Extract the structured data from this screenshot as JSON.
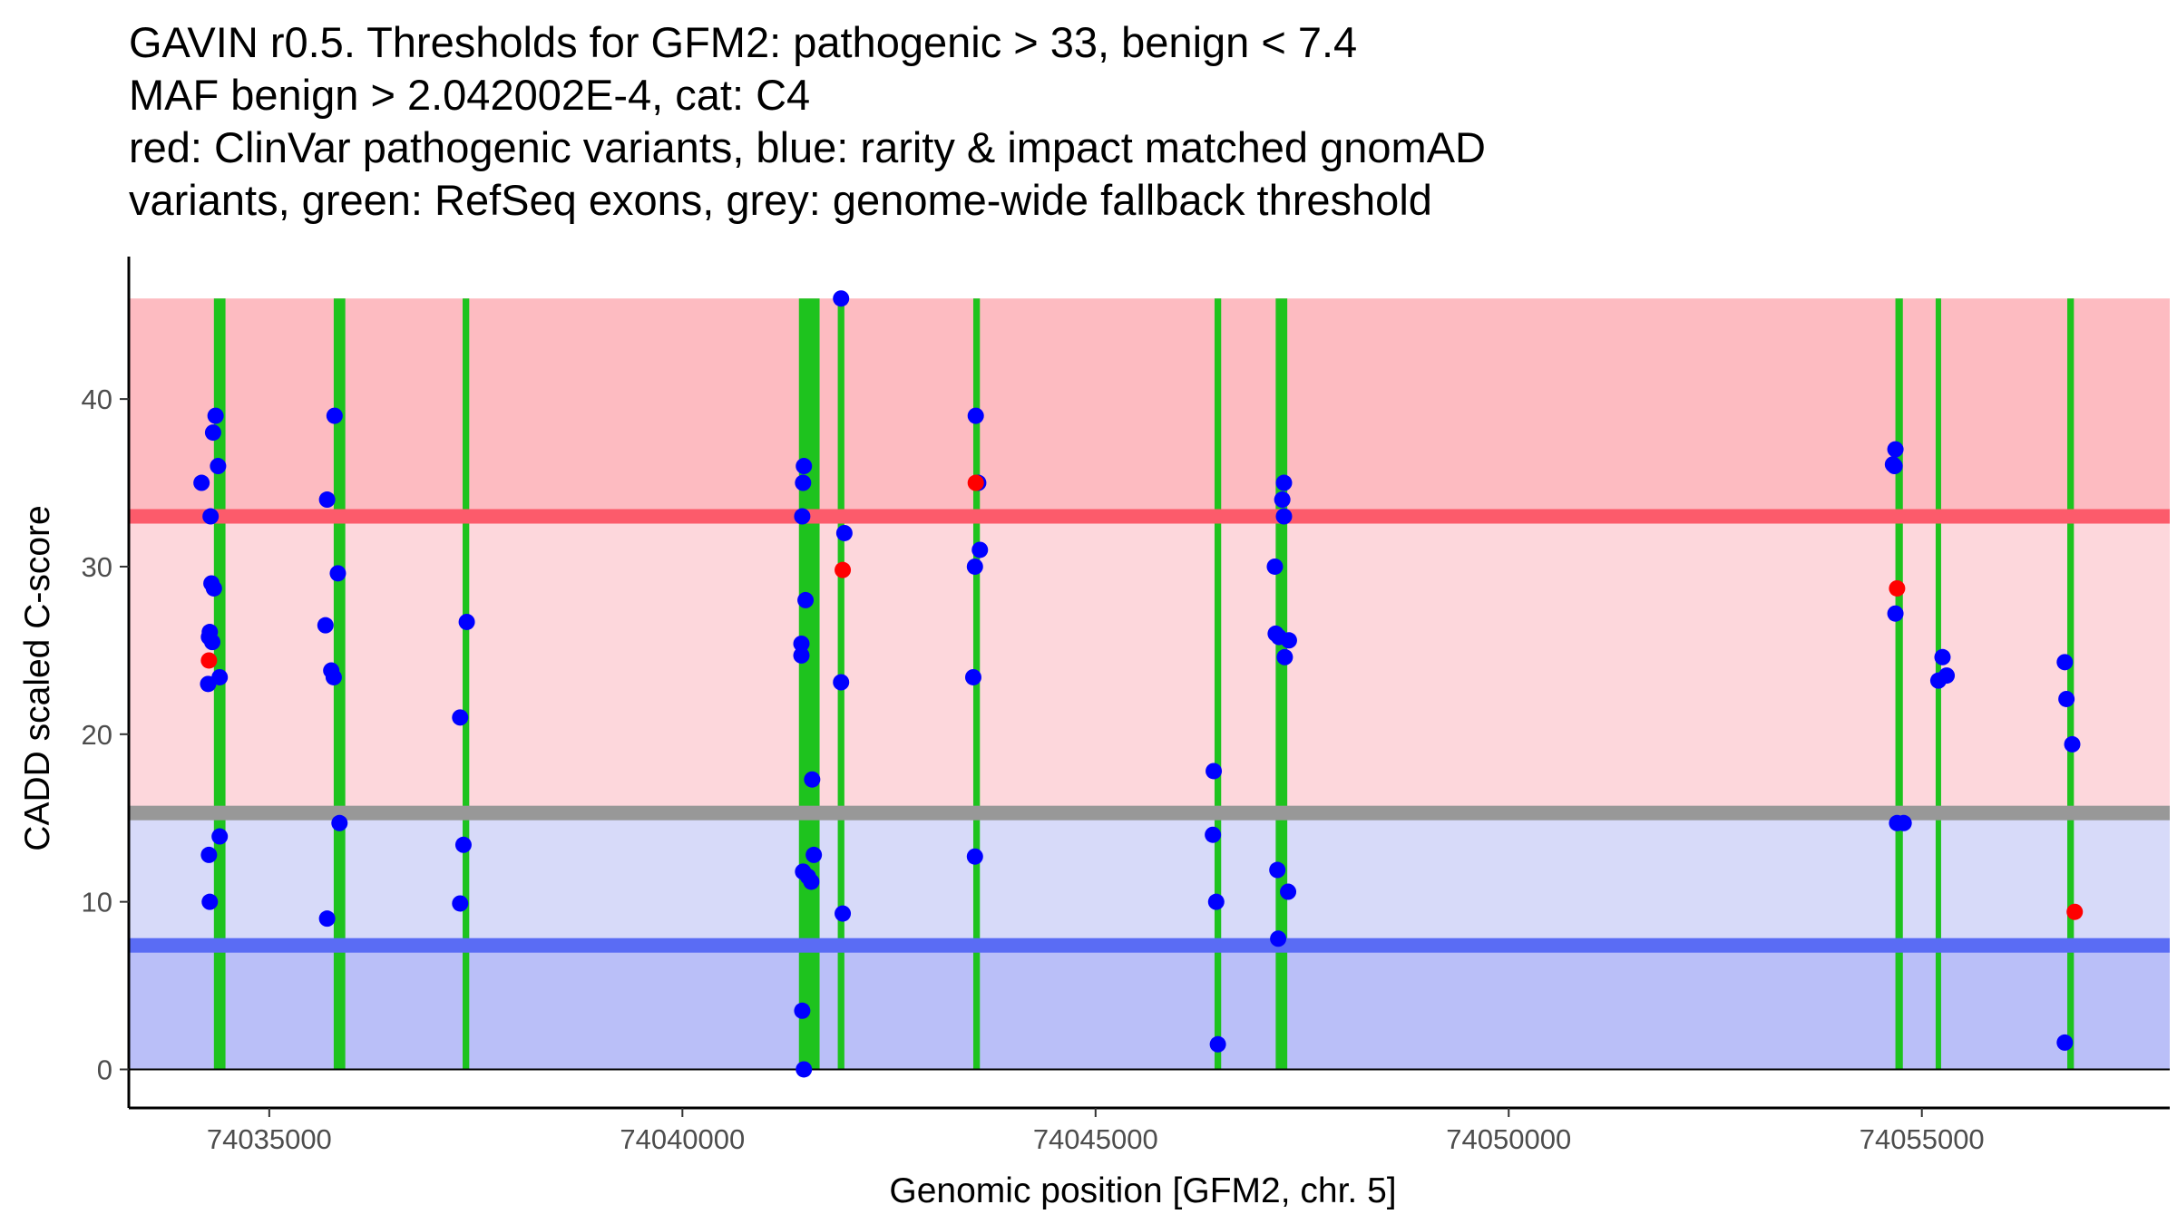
{
  "chart_data": {
    "type": "scatter",
    "title": [
      "GAVIN r0.5. Thresholds for GFM2: pathogenic > 33, benign < 7.4",
      "MAF benign > 2.042002E-4, cat: C4",
      "red: ClinVar pathogenic variants, blue: rarity & impact matched gnomAD",
      "variants, green: RefSeq exons, grey: genome-wide fallback threshold"
    ],
    "xlabel": "Genomic position [GFM2, chr. 5]",
    "ylabel": "CADD scaled C-score",
    "xlim": [
      74033300,
      74058000
    ],
    "ylim": [
      -2.3,
      48.5
    ],
    "xticks": [
      74035000,
      74040000,
      74045000,
      74050000,
      74055000
    ],
    "xtick_labels": [
      "74035000",
      "74040000",
      "74045000",
      "74050000",
      "74055000"
    ],
    "yticks": [
      0,
      10,
      20,
      30,
      40
    ],
    "ytick_labels": [
      "0",
      "10",
      "20",
      "30",
      "40"
    ],
    "thresholds": {
      "pathogenic": 33,
      "benign": 7.4,
      "fallback": 15.3,
      "score_max": 46
    },
    "colors": {
      "pathogenic_band_top": "#fdbbc1",
      "pathogenic_band_mid": "#fdd7dc",
      "benign_band_mid": "#d7daf9",
      "benign_band_low": "#babff8",
      "pathogenic_line": "#fc5b6b",
      "fallback_line": "#989898",
      "benign_line": "#5a6cf4",
      "exon": "#1ec31e",
      "gnomad_point": "#0000ff",
      "clinvar_point": "#ff0000"
    },
    "exons": [
      {
        "start": 74034330,
        "end": 74034470
      },
      {
        "start": 74035780,
        "end": 74035920
      },
      {
        "start": 74037340,
        "end": 74037420
      },
      {
        "start": 74041410,
        "end": 74041660
      },
      {
        "start": 74041880,
        "end": 74041960
      },
      {
        "start": 74043520,
        "end": 74043600
      },
      {
        "start": 74046440,
        "end": 74046520
      },
      {
        "start": 74047180,
        "end": 74047320
      },
      {
        "start": 74054680,
        "end": 74054770
      },
      {
        "start": 74055170,
        "end": 74055230
      },
      {
        "start": 74056760,
        "end": 74056840
      }
    ],
    "series": [
      {
        "name": "gnomAD variants",
        "color": "#0000ff",
        "points": [
          {
            "x": 74034180,
            "y": 35
          },
          {
            "x": 74034290,
            "y": 33
          },
          {
            "x": 74034300,
            "y": 29
          },
          {
            "x": 74034280,
            "y": 26.1
          },
          {
            "x": 74034270,
            "y": 25.8
          },
          {
            "x": 74034310,
            "y": 25.5
          },
          {
            "x": 74034260,
            "y": 23
          },
          {
            "x": 74034270,
            "y": 12.8
          },
          {
            "x": 74034280,
            "y": 10
          },
          {
            "x": 74034350,
            "y": 39
          },
          {
            "x": 74034320,
            "y": 38
          },
          {
            "x": 74034380,
            "y": 36
          },
          {
            "x": 74034330,
            "y": 28.7
          },
          {
            "x": 74034400,
            "y": 23.4
          },
          {
            "x": 74034400,
            "y": 13.9
          },
          {
            "x": 74035700,
            "y": 34
          },
          {
            "x": 74035680,
            "y": 26.5
          },
          {
            "x": 74035750,
            "y": 23.8
          },
          {
            "x": 74035780,
            "y": 23.4
          },
          {
            "x": 74035700,
            "y": 9
          },
          {
            "x": 74035790,
            "y": 39
          },
          {
            "x": 74035830,
            "y": 29.6
          },
          {
            "x": 74035850,
            "y": 14.7
          },
          {
            "x": 74037390,
            "y": 26.7
          },
          {
            "x": 74037310,
            "y": 21
          },
          {
            "x": 74037350,
            "y": 13.4
          },
          {
            "x": 74037310,
            "y": 9.9
          },
          {
            "x": 74041470,
            "y": 36
          },
          {
            "x": 74041460,
            "y": 35
          },
          {
            "x": 74041450,
            "y": 33
          },
          {
            "x": 74041440,
            "y": 25.4
          },
          {
            "x": 74041440,
            "y": 24.7
          },
          {
            "x": 74041460,
            "y": 11.8
          },
          {
            "x": 74041450,
            "y": 3.5
          },
          {
            "x": 74041490,
            "y": 28
          },
          {
            "x": 74041570,
            "y": 17.3
          },
          {
            "x": 74041590,
            "y": 12.8
          },
          {
            "x": 74041520,
            "y": 11.5
          },
          {
            "x": 74041560,
            "y": 11.2
          },
          {
            "x": 74041470,
            "y": 0
          },
          {
            "x": 74041920,
            "y": 46
          },
          {
            "x": 74041960,
            "y": 32
          },
          {
            "x": 74041920,
            "y": 23.1
          },
          {
            "x": 74041940,
            "y": 9.3
          },
          {
            "x": 74043550,
            "y": 39
          },
          {
            "x": 74043580,
            "y": 35
          },
          {
            "x": 74043600,
            "y": 31
          },
          {
            "x": 74043540,
            "y": 30
          },
          {
            "x": 74043520,
            "y": 23.4
          },
          {
            "x": 74043540,
            "y": 12.7
          },
          {
            "x": 74046430,
            "y": 17.8
          },
          {
            "x": 74046420,
            "y": 14
          },
          {
            "x": 74046460,
            "y": 10
          },
          {
            "x": 74046480,
            "y": 1.5
          },
          {
            "x": 74047280,
            "y": 35
          },
          {
            "x": 74047260,
            "y": 34
          },
          {
            "x": 74047280,
            "y": 33
          },
          {
            "x": 74047170,
            "y": 30
          },
          {
            "x": 74047180,
            "y": 26
          },
          {
            "x": 74047220,
            "y": 25.8
          },
          {
            "x": 74047340,
            "y": 25.6
          },
          {
            "x": 74047290,
            "y": 24.6
          },
          {
            "x": 74047200,
            "y": 11.9
          },
          {
            "x": 74047330,
            "y": 10.6
          },
          {
            "x": 74047210,
            "y": 7.8
          },
          {
            "x": 74054680,
            "y": 37
          },
          {
            "x": 74054650,
            "y": 36.1
          },
          {
            "x": 74054670,
            "y": 36
          },
          {
            "x": 74054680,
            "y": 27.2
          },
          {
            "x": 74054700,
            "y": 14.7
          },
          {
            "x": 74054780,
            "y": 14.7
          },
          {
            "x": 74055250,
            "y": 24.6
          },
          {
            "x": 74055200,
            "y": 23.2
          },
          {
            "x": 74055300,
            "y": 23.5
          },
          {
            "x": 74056730,
            "y": 24.3
          },
          {
            "x": 74056750,
            "y": 22.1
          },
          {
            "x": 74056820,
            "y": 19.4
          },
          {
            "x": 74056730,
            "y": 1.6
          }
        ]
      },
      {
        "name": "ClinVar pathogenic variants",
        "color": "#ff0000",
        "points": [
          {
            "x": 74034270,
            "y": 24.4
          },
          {
            "x": 74041940,
            "y": 29.8
          },
          {
            "x": 74043550,
            "y": 35
          },
          {
            "x": 74054700,
            "y": 28.7
          },
          {
            "x": 74056850,
            "y": 9.4
          }
        ]
      }
    ]
  }
}
